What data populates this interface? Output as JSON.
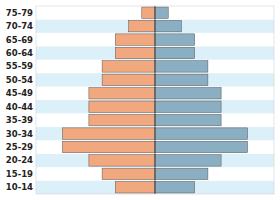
{
  "chart_data": {
    "type": "pyramid",
    "orientation": "horizontal",
    "categories": [
      "10-14",
      "15-19",
      "20-24",
      "25-29",
      "30-34",
      "35-39",
      "40-44",
      "45-49",
      "50-54",
      "55-59",
      "60-64",
      "65-69",
      "70-74",
      "75-79"
    ],
    "series": [
      {
        "color": "#F2A87E",
        "values": [
          3,
          4,
          5,
          7,
          7,
          5,
          5,
          5,
          4,
          4,
          3,
          3,
          2,
          1
        ]
      },
      {
        "color": "#8BAFC2",
        "values": [
          3,
          4,
          5,
          7,
          7,
          5,
          5,
          5,
          4,
          4,
          3,
          3,
          2,
          1
        ]
      }
    ],
    "xlim": [
      -9,
      9
    ],
    "xticks": [],
    "tick_labels": "y",
    "grid": false
  }
}
